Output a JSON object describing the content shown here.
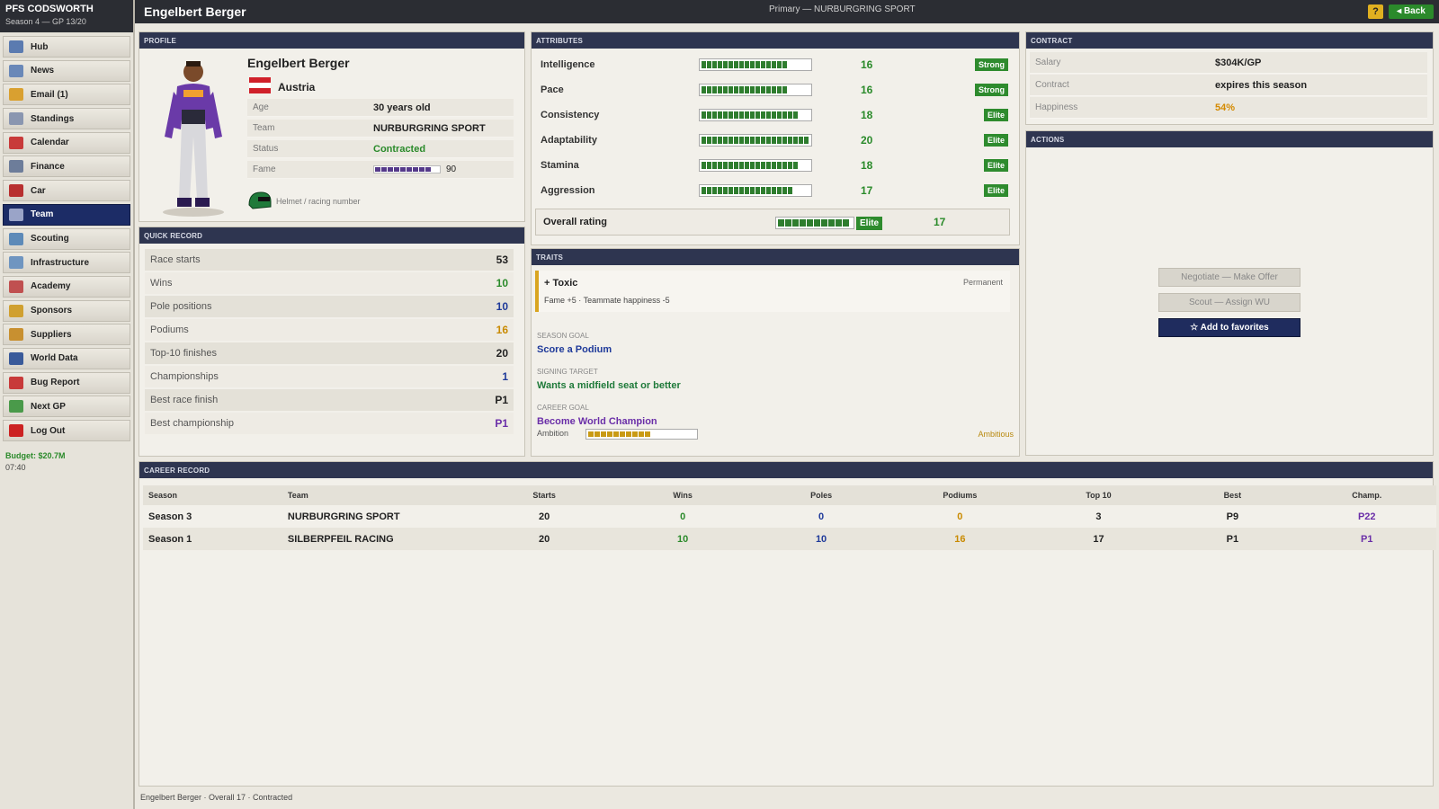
{
  "app": {
    "title": "PFS CODSWORTH",
    "subtitle": "Season 4 — GP 13/20"
  },
  "sidebar": {
    "items": [
      {
        "label": "Hub",
        "icon": "hub-icon",
        "color": "#5b7bb0"
      },
      {
        "label": "News",
        "icon": "news-icon",
        "color": "#6a88b8"
      },
      {
        "label": "Email (1)",
        "icon": "email-icon",
        "color": "#d9a030"
      },
      {
        "label": "Standings",
        "icon": "standings-icon",
        "color": "#8a96b0"
      },
      {
        "label": "Calendar",
        "icon": "calendar-icon",
        "color": "#c83a3a"
      },
      {
        "label": "Finance",
        "icon": "finance-icon",
        "color": "#6d7d9a"
      },
      {
        "label": "Car",
        "icon": "car-icon",
        "color": "#b83030"
      },
      {
        "label": "Team",
        "icon": "team-icon",
        "color": "#9aa4c8"
      },
      {
        "label": "Scouting",
        "icon": "scouting-icon",
        "color": "#5d8ab8"
      },
      {
        "label": "Infrastructure",
        "icon": "infrastructure-icon",
        "color": "#6f95c0"
      },
      {
        "label": "Academy",
        "icon": "academy-icon",
        "color": "#c05050"
      },
      {
        "label": "Sponsors",
        "icon": "sponsors-icon",
        "color": "#d0a030"
      },
      {
        "label": "Suppliers",
        "icon": "suppliers-icon",
        "color": "#c89030"
      },
      {
        "label": "World Data",
        "icon": "world-data-icon",
        "color": "#3a5a9a"
      },
      {
        "label": "Bug Report",
        "icon": "bug-report-icon",
        "color": "#c83a3a"
      },
      {
        "label": "Next GP",
        "icon": "next-gp-icon",
        "color": "#4a9a4a"
      },
      {
        "label": "Log Out",
        "icon": "power-icon",
        "color": "#cc2222"
      }
    ],
    "active_index": 7,
    "budget": "Budget: $20.7M",
    "time": "07:40"
  },
  "topbar": {
    "driver_name": "Engelbert Berger",
    "center": "Primary — NURBURGRING SPORT",
    "help": "?",
    "back": "◂ Back"
  },
  "profile": {
    "header": "PROFILE",
    "name": "Engelbert Berger",
    "country": "Austria",
    "flag_colors": [
      "#d0202a",
      "#ffffff",
      "#d0202a"
    ],
    "rows": [
      {
        "label": "Age",
        "value": "30 years old"
      },
      {
        "label": "Team",
        "value": "NURBURGRING SPORT"
      },
      {
        "label": "Status",
        "value": "Contracted"
      }
    ],
    "fame_label": "Fame",
    "fame_value": "90",
    "fame_level": 0.9,
    "helmet_label": "Helmet / racing number"
  },
  "quick_record": {
    "header": "QUICK RECORD",
    "rows": [
      {
        "label": "Race starts",
        "value": "53",
        "color": "dark"
      },
      {
        "label": "Wins",
        "value": "10",
        "color": "green"
      },
      {
        "label": "Pole positions",
        "value": "10",
        "color": "blue"
      },
      {
        "label": "Podiums",
        "value": "16",
        "color": "orange"
      },
      {
        "label": "Top-10 finishes",
        "value": "20",
        "color": "dark"
      },
      {
        "label": "Championships",
        "value": "1",
        "color": "blue"
      },
      {
        "label": "Best race finish",
        "value": "P1",
        "color": "dark"
      },
      {
        "label": "Best championship",
        "value": "P1",
        "color": "purple"
      }
    ]
  },
  "attributes": {
    "header": "ATTRIBUTES",
    "rows": [
      {
        "label": "Intelligence",
        "value": "16",
        "segments": 16,
        "badge": "Strong"
      },
      {
        "label": "Pace",
        "value": "16",
        "segments": 16,
        "badge": "Strong"
      },
      {
        "label": "Consistency",
        "value": "18",
        "segments": 18,
        "badge": "Elite"
      },
      {
        "label": "Adaptability",
        "value": "20",
        "segments": 20,
        "badge": "Elite"
      },
      {
        "label": "Stamina",
        "value": "18",
        "segments": 18,
        "badge": "Elite"
      },
      {
        "label": "Aggression",
        "value": "17",
        "segments": 17,
        "badge": "Elite"
      }
    ],
    "overall_label": "Overall rating",
    "overall_badge": "Elite",
    "overall_value": "17",
    "overall_segments": 10
  },
  "traits": {
    "header": "TRAITS",
    "trait_name": "+ Toxic",
    "trait_tag": "Permanent",
    "trait_effect": "Fame +5 · Teammate happiness -5",
    "season_goal_label": "SEASON GOAL",
    "season_goal": "Score a Podium",
    "signing_target_label": "SIGNING TARGET",
    "signing_target": "Wants a midfield seat or better",
    "career_goal_label": "CAREER GOAL",
    "career_goal": "Become World Champion",
    "ambition_label": "Ambition",
    "ambition_tag": "Ambitious",
    "ambition_segments": 10
  },
  "contract": {
    "header": "CONTRACT",
    "rows": [
      {
        "label": "Salary",
        "value": "$304K/GP",
        "color": "dark"
      },
      {
        "label": "Contract",
        "value": "expires this season",
        "color": "dark"
      },
      {
        "label": "Happiness",
        "value": "54%",
        "color": "orange"
      }
    ]
  },
  "actions": {
    "header": "ACTIONS",
    "negotiate": "Negotiate — Make Offer",
    "scout": "Scout — Assign WU",
    "favorite": "☆ Add to favorites"
  },
  "career_record": {
    "header": "CAREER RECORD",
    "columns": [
      "Season",
      "Team",
      "Starts",
      "Wins",
      "Poles",
      "Podiums",
      "Top 10",
      "Best",
      "Champ."
    ],
    "rows": [
      [
        "Season 3",
        "NURBURGRING SPORT",
        "20",
        "0",
        "0",
        "0",
        "3",
        "P9",
        "P22"
      ],
      [
        "Season 1",
        "SILBERPFEIL RACING",
        "20",
        "10",
        "10",
        "16",
        "17",
        "P1",
        "P1"
      ]
    ]
  },
  "footer": "Engelbert Berger · Overall 17 · Contracted"
}
